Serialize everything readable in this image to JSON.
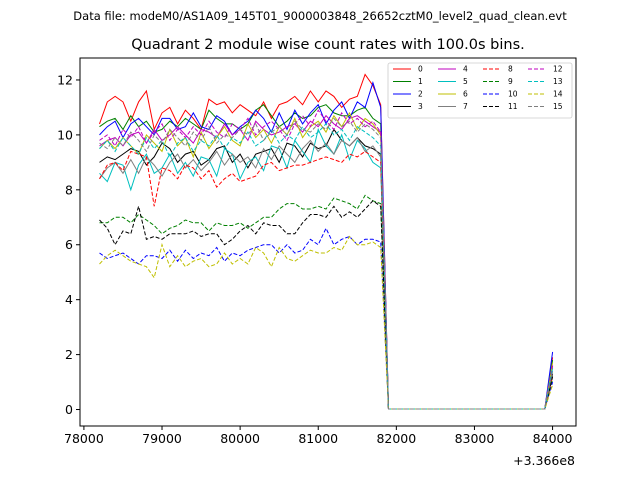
{
  "figure": {
    "suptitle": "Data file: modeM0/AS1A09_145T01_9000003848_26652cztM0_level2_quad_clean.evt"
  },
  "chart_data": {
    "type": "line",
    "title": "Quadrant 2 module wise count rates with 100.0s bins.",
    "xlabel": "",
    "ylabel": "",
    "x_offset_label": "+3.366e8",
    "xlim": [
      77950,
      84300
    ],
    "ylim": [
      -0.6,
      12.8
    ],
    "xticks": [
      78000,
      79000,
      80000,
      81000,
      82000,
      83000,
      84000
    ],
    "yticks": [
      0,
      2,
      4,
      6,
      8,
      10,
      12
    ],
    "grid": false,
    "legend_position": "top-right",
    "legend_columns": 4,
    "x": [
      78200,
      78300,
      78400,
      78500,
      78600,
      78700,
      78800,
      78900,
      79000,
      79100,
      79200,
      79300,
      79400,
      79500,
      79600,
      79700,
      79800,
      79900,
      80000,
      80100,
      80200,
      80300,
      80400,
      80500,
      80600,
      80700,
      80800,
      80900,
      81000,
      81100,
      81200,
      81300,
      81400,
      81500,
      81600,
      81700,
      81800,
      81900,
      82000,
      82100,
      82200,
      82300,
      82400,
      82500,
      82600,
      82700,
      82800,
      82900,
      83000,
      83100,
      83200,
      83300,
      83400,
      83500,
      83600,
      83700,
      83800,
      83900,
      84000
    ],
    "series": [
      {
        "name": "0",
        "color": "#ff0000",
        "dash": "solid",
        "values": [
          10.4,
          11.2,
          11.4,
          11.2,
          10.5,
          11.2,
          11.6,
          10.2,
          10.8,
          11.0,
          10.4,
          10.9,
          10.6,
          10.2,
          11.3,
          11.1,
          11.2,
          10.8,
          11.1,
          10.9,
          10.7,
          11.2,
          10.6,
          11.1,
          11.2,
          11.4,
          11.1,
          11.6,
          11.2,
          11.6,
          11.4,
          11.0,
          11.3,
          11.4,
          12.2,
          11.8,
          11.1,
          0.02,
          0.02,
          0.02,
          0.02,
          0.02,
          0.02,
          0.02,
          0.02,
          0.02,
          0.02,
          0.02,
          0.02,
          0.02,
          0.02,
          0.02,
          0.02,
          0.02,
          0.02,
          0.02,
          0.02,
          0.02,
          1.9
        ]
      },
      {
        "name": "1",
        "color": "#008000",
        "dash": "solid",
        "values": [
          10.3,
          10.5,
          10.6,
          10.2,
          10.7,
          10.3,
          10.5,
          10.1,
          10.2,
          10.5,
          10.3,
          10.6,
          10.4,
          10.2,
          10.9,
          10.6,
          10.4,
          10.4,
          10.2,
          10.4,
          10.9,
          11.1,
          10.7,
          10.3,
          10.5,
          10.8,
          10.6,
          10.7,
          11.0,
          11.1,
          10.8,
          10.7,
          10.7,
          10.9,
          11.0,
          10.6,
          10.4,
          0.02,
          0.02,
          0.02,
          0.02,
          0.02,
          0.02,
          0.02,
          0.02,
          0.02,
          0.02,
          0.02,
          0.02,
          0.02,
          0.02,
          0.02,
          0.02,
          0.02,
          0.02,
          0.02,
          0.02,
          0.02,
          1.8
        ]
      },
      {
        "name": "2",
        "color": "#0000ff",
        "dash": "solid",
        "values": [
          10.0,
          10.3,
          10.5,
          9.9,
          10.4,
          10.6,
          10.3,
          10.0,
          10.6,
          10.6,
          10.2,
          10.3,
          10.8,
          10.3,
          10.2,
          10.7,
          10.5,
          10.0,
          10.3,
          10.5,
          10.9,
          10.6,
          10.1,
          10.8,
          10.2,
          10.9,
          10.4,
          10.8,
          11.1,
          10.4,
          10.9,
          11.2,
          10.6,
          11.2,
          11.0,
          11.9,
          11.0,
          0.02,
          0.02,
          0.02,
          0.02,
          0.02,
          0.02,
          0.02,
          0.02,
          0.02,
          0.02,
          0.02,
          0.02,
          0.02,
          0.02,
          0.02,
          0.02,
          0.02,
          0.02,
          0.02,
          0.02,
          0.02,
          2.1
        ]
      },
      {
        "name": "3",
        "color": "#000000",
        "dash": "solid",
        "values": [
          9.0,
          9.2,
          9.1,
          9.3,
          9.5,
          9.4,
          8.9,
          9.2,
          9.7,
          9.5,
          9.0,
          9.3,
          9.4,
          8.9,
          9.1,
          9.5,
          9.6,
          9.0,
          9.3,
          8.8,
          9.3,
          9.4,
          9.5,
          9.0,
          9.7,
          9.6,
          9.2,
          9.7,
          9.5,
          9.6,
          10.2,
          9.8,
          9.6,
          9.9,
          9.6,
          9.5,
          9.3,
          0.02,
          0.02,
          0.02,
          0.02,
          0.02,
          0.02,
          0.02,
          0.02,
          0.02,
          0.02,
          0.02,
          0.02,
          0.02,
          0.02,
          0.02,
          0.02,
          0.02,
          0.02,
          0.02,
          0.02,
          0.02,
          1.3
        ]
      },
      {
        "name": "4",
        "color": "#bf00bf",
        "dash": "solid",
        "values": [
          9.6,
          9.8,
          9.9,
          9.6,
          10.0,
          10.1,
          9.7,
          10.2,
          9.8,
          10.0,
          10.3,
          10.0,
          9.7,
          10.2,
          10.1,
          9.9,
          10.4,
          10.0,
          10.2,
          9.8,
          10.5,
          10.2,
          10.0,
          10.1,
          10.3,
          10.4,
          10.1,
          10.5,
          10.3,
          10.7,
          10.4,
          10.2,
          10.6,
          10.7,
          10.5,
          10.3,
          10.1,
          0.02,
          0.02,
          0.02,
          0.02,
          0.02,
          0.02,
          0.02,
          0.02,
          0.02,
          0.02,
          0.02,
          0.02,
          0.02,
          0.02,
          0.02,
          0.02,
          0.02,
          0.02,
          0.02,
          0.02,
          0.02,
          1.6
        ]
      },
      {
        "name": "5",
        "color": "#00bfbf",
        "dash": "solid",
        "values": [
          8.6,
          8.3,
          9.0,
          8.9,
          8.0,
          8.9,
          9.3,
          8.6,
          8.8,
          9.3,
          8.6,
          9.0,
          8.5,
          9.2,
          9.1,
          8.5,
          9.5,
          9.3,
          8.4,
          9.0,
          9.2,
          8.7,
          9.6,
          9.5,
          8.8,
          9.8,
          9.4,
          9.0,
          10.2,
          9.6,
          9.3,
          10.0,
          9.1,
          9.8,
          9.5,
          9.0,
          8.8,
          0.02,
          0.02,
          0.02,
          0.02,
          0.02,
          0.02,
          0.02,
          0.02,
          0.02,
          0.02,
          0.02,
          0.02,
          0.02,
          0.02,
          0.02,
          0.02,
          0.02,
          0.02,
          0.02,
          0.02,
          0.02,
          1.5
        ]
      },
      {
        "name": "6",
        "color": "#bfbf00",
        "dash": "solid",
        "values": [
          9.5,
          9.8,
          9.5,
          9.9,
          9.6,
          9.3,
          10.0,
          9.7,
          9.4,
          10.2,
          9.6,
          9.9,
          9.2,
          10.1,
          9.5,
          9.9,
          10.3,
          9.8,
          9.6,
          10.4,
          9.9,
          10.2,
          9.7,
          10.3,
          10.0,
          10.6,
          9.9,
          10.3,
          10.5,
          10.1,
          10.7,
          10.3,
          10.8,
          10.2,
          10.6,
          10.4,
          10.0,
          0.02,
          0.02,
          0.02,
          0.02,
          0.02,
          0.02,
          0.02,
          0.02,
          0.02,
          0.02,
          0.02,
          0.02,
          0.02,
          0.02,
          0.02,
          0.02,
          0.02,
          0.02,
          0.02,
          0.02,
          0.02,
          1.7
        ]
      },
      {
        "name": "7",
        "color": "#7f7f7f",
        "dash": "solid",
        "values": [
          8.4,
          8.8,
          9.0,
          8.6,
          9.1,
          8.6,
          9.2,
          8.9,
          8.5,
          9.0,
          9.3,
          8.8,
          9.1,
          8.7,
          9.0,
          9.4,
          8.9,
          9.3,
          9.0,
          9.2,
          8.8,
          9.5,
          9.1,
          9.6,
          9.3,
          9.0,
          9.5,
          9.8,
          9.4,
          9.7,
          9.3,
          9.8,
          9.6,
          9.9,
          9.4,
          9.6,
          9.2,
          0.02,
          0.02,
          0.02,
          0.02,
          0.02,
          0.02,
          0.02,
          0.02,
          0.02,
          0.02,
          0.02,
          0.02,
          0.02,
          0.02,
          0.02,
          0.02,
          0.02,
          0.02,
          0.02,
          0.02,
          0.02,
          1.4
        ]
      },
      {
        "name": "8",
        "color": "#ff0000",
        "dash": "dashed",
        "values": [
          8.4,
          8.9,
          9.0,
          8.7,
          9.4,
          9.3,
          9.2,
          7.4,
          8.8,
          8.7,
          8.4,
          8.9,
          8.8,
          8.4,
          8.7,
          8.1,
          8.4,
          8.6,
          8.3,
          8.4,
          8.5,
          8.9,
          9.0,
          8.7,
          8.8,
          8.9,
          8.9,
          9.0,
          9.1,
          9.2,
          9.1,
          9.0,
          9.3,
          9.2,
          9.4,
          9.2,
          9.0,
          0.02,
          0.02,
          0.02,
          0.02,
          0.02,
          0.02,
          0.02,
          0.02,
          0.02,
          0.02,
          0.02,
          0.02,
          0.02,
          0.02,
          0.02,
          0.02,
          0.02,
          0.02,
          0.02,
          0.02,
          0.02,
          1.2
        ]
      },
      {
        "name": "9",
        "color": "#008000",
        "dash": "dashed",
        "values": [
          6.8,
          6.8,
          7.0,
          7.0,
          6.8,
          7.1,
          6.9,
          6.7,
          6.4,
          6.6,
          6.7,
          6.9,
          6.8,
          6.8,
          6.5,
          6.8,
          6.7,
          6.7,
          6.8,
          6.6,
          6.8,
          7.0,
          7.0,
          7.3,
          7.5,
          7.5,
          7.3,
          7.3,
          7.4,
          7.3,
          7.7,
          7.6,
          7.5,
          7.3,
          7.8,
          7.6,
          7.5,
          0.02,
          0.02,
          0.02,
          0.02,
          0.02,
          0.02,
          0.02,
          0.02,
          0.02,
          0.02,
          0.02,
          0.02,
          0.02,
          0.02,
          0.02,
          0.02,
          0.02,
          0.02,
          0.02,
          0.02,
          0.02,
          1.1
        ]
      },
      {
        "name": "10",
        "color": "#0000ff",
        "dash": "dashed",
        "values": [
          5.7,
          5.5,
          5.6,
          5.7,
          5.5,
          5.3,
          5.6,
          5.6,
          5.5,
          5.8,
          5.4,
          5.8,
          5.5,
          5.7,
          5.6,
          5.9,
          5.4,
          5.7,
          5.6,
          5.8,
          5.9,
          6.0,
          6.0,
          5.7,
          6.0,
          5.7,
          5.8,
          6.2,
          6.0,
          6.6,
          6.0,
          6.2,
          6.3,
          6.0,
          6.2,
          6.2,
          6.1,
          0.02,
          0.02,
          0.02,
          0.02,
          0.02,
          0.02,
          0.02,
          0.02,
          0.02,
          0.02,
          0.02,
          0.02,
          0.02,
          0.02,
          0.02,
          0.02,
          0.02,
          0.02,
          0.02,
          0.02,
          0.02,
          1.0
        ]
      },
      {
        "name": "11",
        "color": "#000000",
        "dash": "dashed",
        "values": [
          6.9,
          6.6,
          6.0,
          6.5,
          6.4,
          7.4,
          6.2,
          6.3,
          6.2,
          6.4,
          6.4,
          6.4,
          6.5,
          6.3,
          6.4,
          6.4,
          6.0,
          6.2,
          6.5,
          6.7,
          6.4,
          6.8,
          6.7,
          6.7,
          6.4,
          6.4,
          6.8,
          7.1,
          7.1,
          7.0,
          7.4,
          7.0,
          7.2,
          7.0,
          7.3,
          7.6,
          7.4,
          0.02,
          0.02,
          0.02,
          0.02,
          0.02,
          0.02,
          0.02,
          0.02,
          0.02,
          0.02,
          0.02,
          0.02,
          0.02,
          0.02,
          0.02,
          0.02,
          0.02,
          0.02,
          0.02,
          0.02,
          0.02,
          1.2
        ]
      },
      {
        "name": "12",
        "color": "#bf00bf",
        "dash": "dashed",
        "values": [
          9.8,
          10.0,
          9.6,
          10.2,
          9.9,
          10.3,
          9.7,
          10.1,
          10.4,
          9.8,
          10.2,
          9.9,
          10.3,
          10.0,
          10.5,
          10.1,
          9.9,
          10.4,
          10.2,
          10.6,
          10.0,
          10.3,
          10.5,
          10.2,
          9.8,
          10.4,
          10.7,
          10.3,
          10.9,
          10.5,
          10.2,
          10.8,
          10.4,
          10.6,
          10.3,
          10.5,
          10.1,
          0.02,
          0.02,
          0.02,
          0.02,
          0.02,
          0.02,
          0.02,
          0.02,
          0.02,
          0.02,
          0.02,
          0.02,
          0.02,
          0.02,
          0.02,
          0.02,
          0.02,
          0.02,
          0.02,
          0.02,
          0.02,
          1.6
        ]
      },
      {
        "name": "13",
        "color": "#00bfbf",
        "dash": "dashed",
        "values": [
          9.5,
          9.8,
          9.4,
          9.9,
          9.6,
          9.3,
          9.9,
          9.5,
          9.8,
          9.2,
          9.7,
          9.9,
          9.4,
          9.8,
          9.6,
          10.0,
          9.5,
          9.9,
          9.7,
          10.1,
          9.6,
          9.8,
          10.2,
          9.7,
          10.0,
          9.8,
          10.3,
          9.9,
          10.1,
          10.4,
          10.0,
          10.2,
          9.8,
          10.3,
          10.1,
          9.9,
          9.6,
          0.02,
          0.02,
          0.02,
          0.02,
          0.02,
          0.02,
          0.02,
          0.02,
          0.02,
          0.02,
          0.02,
          0.02,
          0.02,
          0.02,
          0.02,
          0.02,
          0.02,
          0.02,
          0.02,
          0.02,
          0.02,
          1.5
        ]
      },
      {
        "name": "14",
        "color": "#bfbf00",
        "dash": "dashed",
        "values": [
          5.3,
          5.6,
          5.8,
          5.6,
          5.4,
          5.3,
          5.2,
          4.8,
          6.0,
          5.2,
          5.6,
          5.2,
          5.4,
          5.5,
          5.2,
          5.3,
          5.7,
          5.3,
          5.5,
          5.3,
          5.9,
          5.7,
          5.2,
          5.9,
          5.5,
          5.4,
          5.6,
          5.8,
          5.7,
          5.7,
          5.9,
          5.8,
          6.3,
          6.0,
          6.0,
          6.1,
          5.9,
          0.02,
          0.02,
          0.02,
          0.02,
          0.02,
          0.02,
          0.02,
          0.02,
          0.02,
          0.02,
          0.02,
          0.02,
          0.02,
          0.02,
          0.02,
          0.02,
          0.02,
          0.02,
          0.02,
          0.02,
          0.02,
          0.9
        ]
      },
      {
        "name": "15",
        "color": "#7f7f7f",
        "dash": "dashed",
        "values": [
          9.7,
          9.5,
          9.9,
          9.6,
          10.1,
          9.8,
          9.4,
          10.0,
          9.7,
          10.2,
          9.9,
          9.6,
          10.1,
          9.8,
          10.3,
          9.7,
          10.0,
          9.9,
          10.2,
          10.0,
          10.4,
          9.8,
          10.1,
          10.3,
          10.0,
          10.5,
          10.2,
          10.1,
          10.4,
          10.2,
          10.6,
          10.3,
          10.5,
          10.1,
          10.4,
          10.2,
          9.9,
          0.02,
          0.02,
          0.02,
          0.02,
          0.02,
          0.02,
          0.02,
          0.02,
          0.02,
          0.02,
          0.02,
          0.02,
          0.02,
          0.02,
          0.02,
          0.02,
          0.02,
          0.02,
          0.02,
          0.02,
          0.02,
          1.4
        ]
      }
    ]
  }
}
